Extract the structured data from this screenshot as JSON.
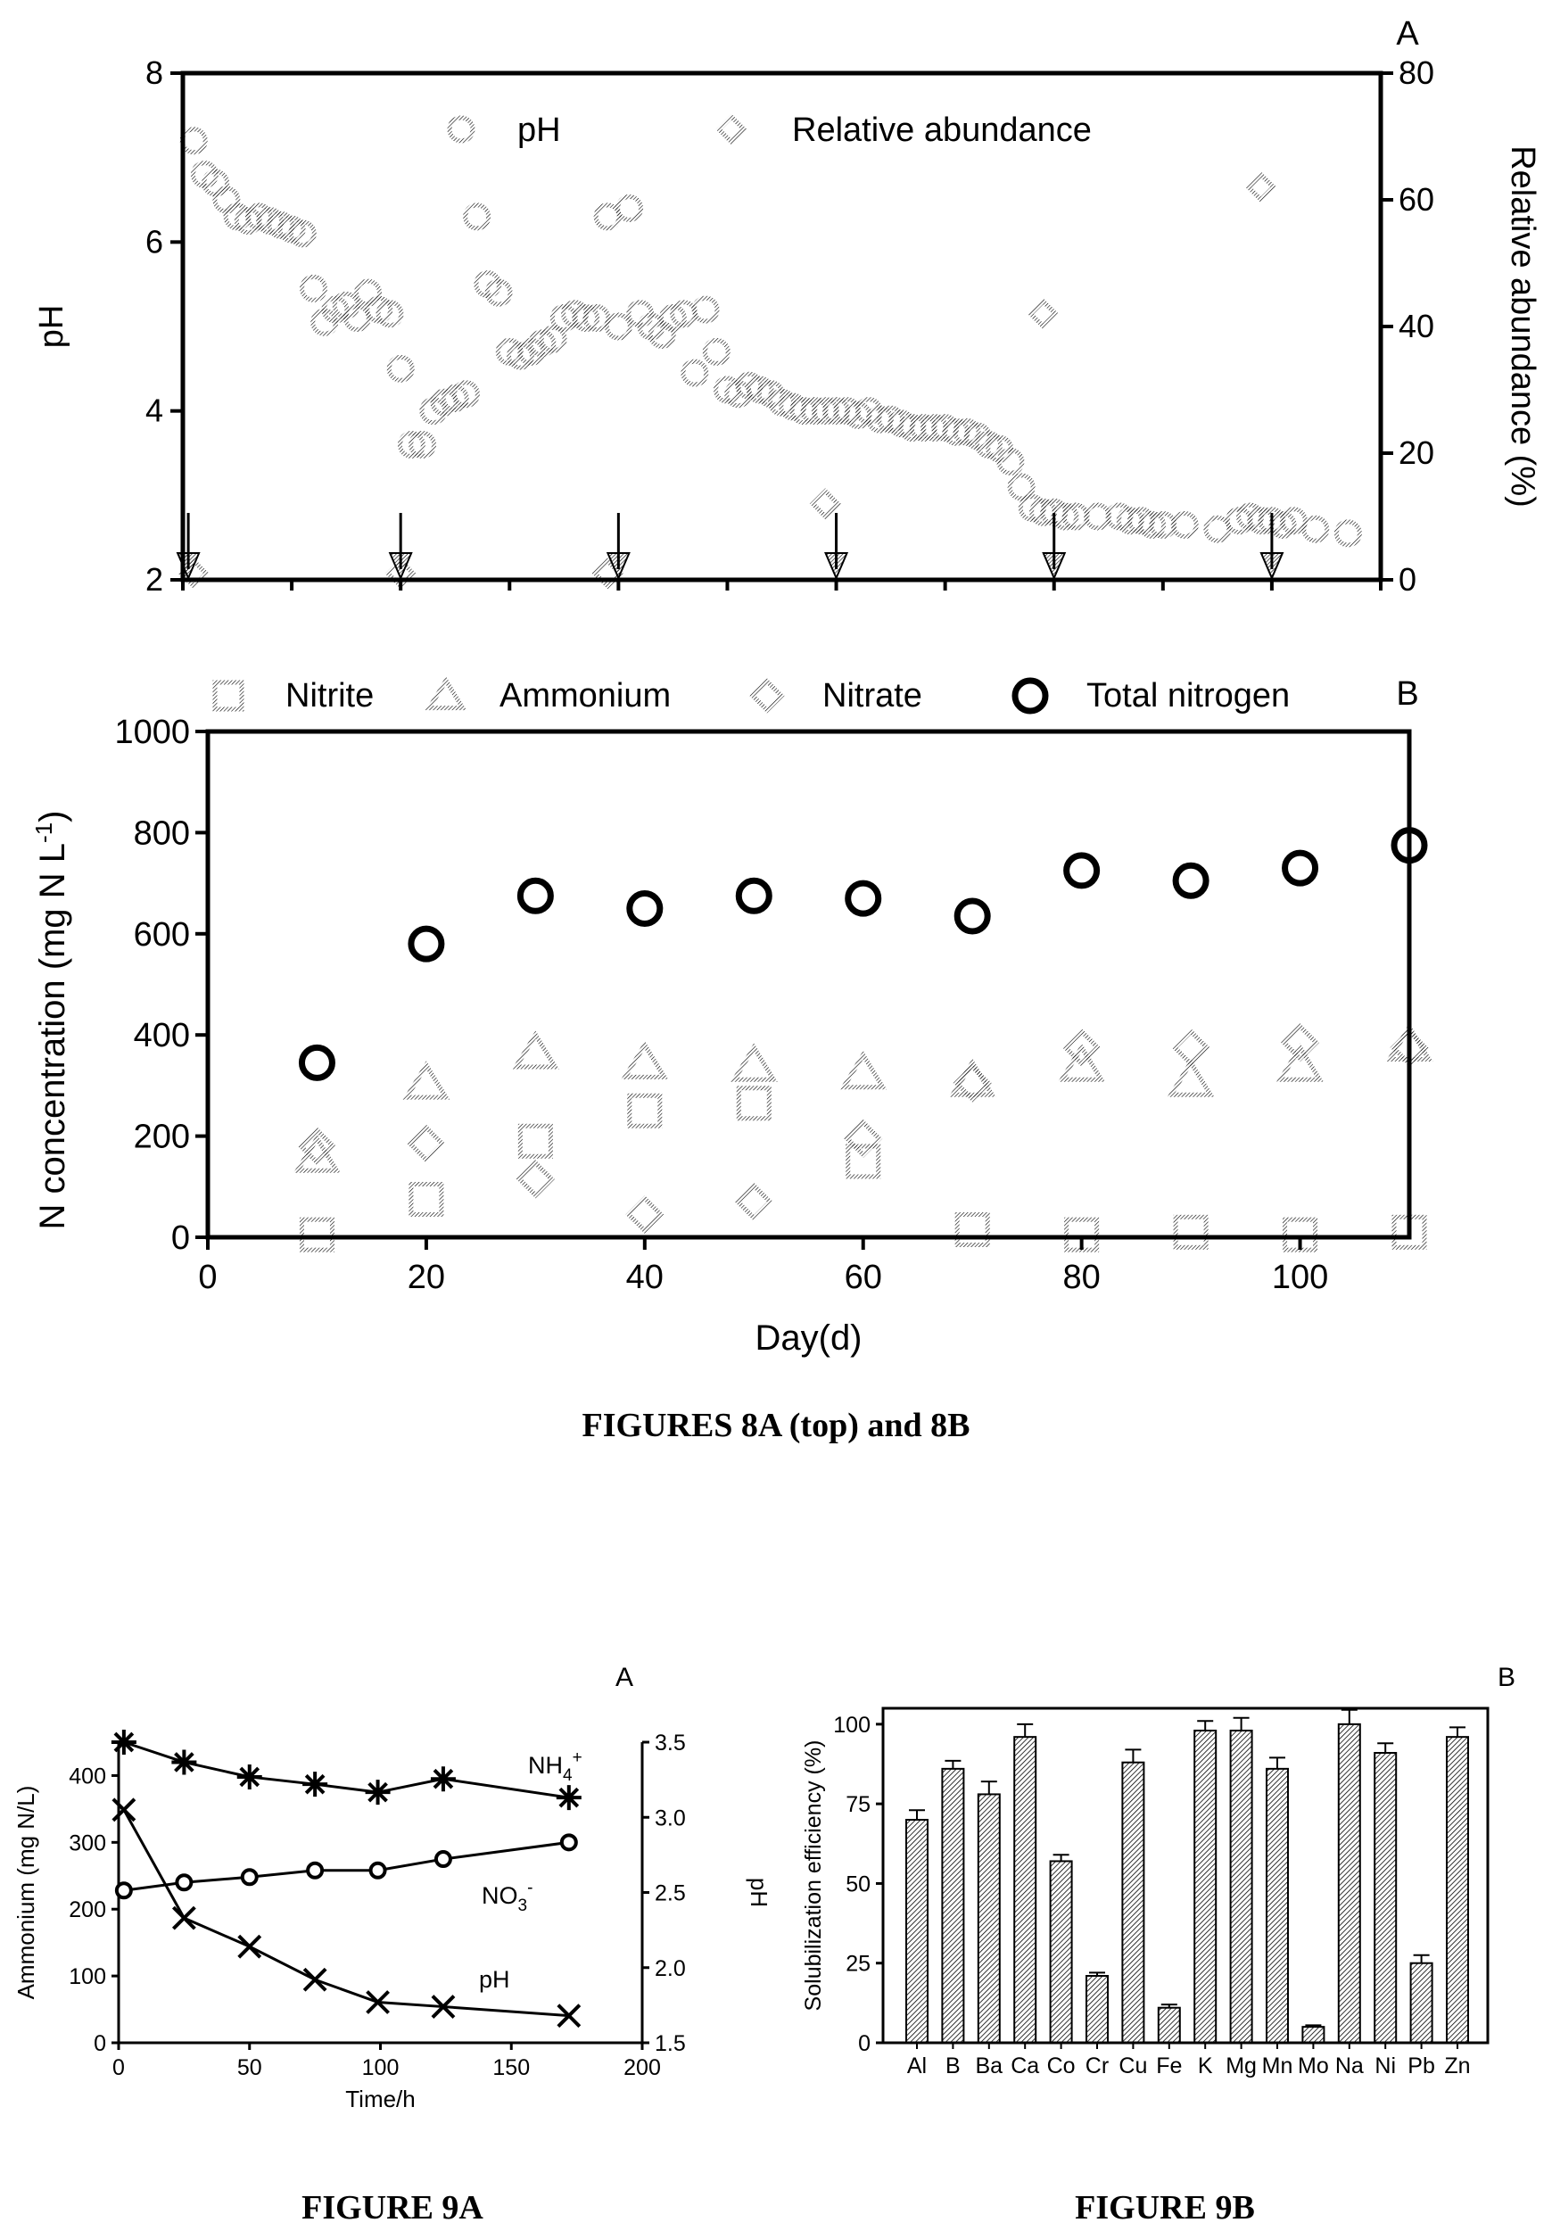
{
  "captions": {
    "fig8": "FIGURES 8A (top) and 8B",
    "fig9a": "FIGURE 9A",
    "fig9b": "FIGURE 9B"
  },
  "chart_data": [
    {
      "id": "8A",
      "type": "scatter",
      "panel_label": "A",
      "xlabel": "",
      "ylabel": "pH",
      "y2label": "Relative abundance (%)",
      "xlim": [
        0,
        110
      ],
      "ylim": [
        2,
        8
      ],
      "y2lim": [
        0,
        80
      ],
      "yticks": [
        2,
        4,
        6,
        8
      ],
      "y2ticks": [
        0,
        20,
        40,
        60,
        80
      ],
      "xticks_unlabeled": [
        0,
        10,
        20,
        30,
        40,
        50,
        60,
        70,
        80,
        90,
        100,
        110
      ],
      "legend": [
        "pH",
        "Relative abundance"
      ],
      "series": [
        {
          "name": "pH",
          "axis": "left",
          "marker": "circle",
          "x": [
            1,
            2,
            3,
            4,
            5,
            6,
            7,
            8,
            9,
            10,
            11,
            12,
            13,
            14,
            15,
            16,
            17,
            18,
            19,
            20,
            21,
            22,
            23,
            24,
            25,
            26,
            27,
            28,
            29,
            30,
            31,
            32,
            33,
            34,
            35,
            36,
            37,
            38,
            39,
            40,
            41,
            42,
            43,
            44,
            45,
            46,
            47,
            48,
            49,
            50,
            51,
            52,
            53,
            54,
            55,
            56,
            57,
            58,
            59,
            60,
            61,
            62,
            63,
            64,
            65,
            66,
            67,
            68,
            69,
            70,
            71,
            72,
            73,
            74,
            75,
            76,
            77,
            78,
            79,
            80,
            81,
            82,
            84,
            86,
            87,
            88,
            89,
            90,
            92,
            95,
            97,
            98,
            99,
            100,
            101,
            102,
            104,
            107
          ],
          "y": [
            7.2,
            6.8,
            6.7,
            6.5,
            6.3,
            6.25,
            6.3,
            6.25,
            6.2,
            6.15,
            6.1,
            5.45,
            5.05,
            5.2,
            5.25,
            5.1,
            5.4,
            5.2,
            5.15,
            4.5,
            3.6,
            3.6,
            4.0,
            4.1,
            4.15,
            4.2,
            6.3,
            5.5,
            5.4,
            4.7,
            4.65,
            4.7,
            4.8,
            4.85,
            5.1,
            5.15,
            5.1,
            5.1,
            6.3,
            5.0,
            6.4,
            5.15,
            5.0,
            4.9,
            5.1,
            5.15,
            4.45,
            5.2,
            4.7,
            4.25,
            4.2,
            4.3,
            4.25,
            4.2,
            4.1,
            4.05,
            4.0,
            4.0,
            4.0,
            4.0,
            4.0,
            3.95,
            4.0,
            3.9,
            3.9,
            3.85,
            3.8,
            3.8,
            3.8,
            3.8,
            3.75,
            3.75,
            3.7,
            3.6,
            3.55,
            3.4,
            3.1,
            2.85,
            2.8,
            2.8,
            2.75,
            2.75,
            2.75,
            2.75,
            2.7,
            2.7,
            2.65,
            2.65,
            2.65,
            2.6,
            2.7,
            2.75,
            2.7,
            2.7,
            2.65,
            2.7,
            2.6,
            2.55
          ]
        },
        {
          "name": "Relative abundance",
          "axis": "right",
          "marker": "diamond",
          "x": [
            1,
            20,
            39,
            59,
            79,
            99
          ],
          "y": [
            1,
            1,
            1,
            12,
            42,
            62
          ]
        }
      ],
      "arrows_at_x": [
        0.5,
        20,
        40,
        60,
        80,
        100
      ]
    },
    {
      "id": "8B",
      "type": "scatter",
      "panel_label": "B",
      "xlabel": "Day(d)",
      "ylabel": "N concentration (mg N L",
      "ylabel_sup": "-1",
      "ylabel_tail": ")",
      "xlim": [
        0,
        110
      ],
      "ylim": [
        0,
        1000
      ],
      "xticks": [
        0,
        20,
        40,
        60,
        80,
        100
      ],
      "yticks": [
        0,
        200,
        400,
        600,
        800,
        1000
      ],
      "series": [
        {
          "name": "Nitrite",
          "marker": "square",
          "x": [
            10,
            20,
            30,
            40,
            50,
            60,
            70,
            80,
            90,
            100,
            110
          ],
          "y": [
            5,
            75,
            190,
            250,
            265,
            150,
            15,
            5,
            10,
            5,
            10
          ]
        },
        {
          "name": "Ammonium",
          "marker": "triangle",
          "x": [
            10,
            20,
            30,
            40,
            50,
            60,
            70,
            80,
            90,
            100,
            110
          ],
          "y": [
            160,
            305,
            365,
            345,
            340,
            325,
            310,
            340,
            310,
            340,
            380
          ]
        },
        {
          "name": "Nitrate",
          "marker": "diamond",
          "x": [
            10,
            20,
            30,
            40,
            50,
            60,
            70,
            80,
            90,
            100,
            110
          ],
          "y": [
            180,
            185,
            115,
            45,
            70,
            195,
            305,
            375,
            375,
            385,
            375
          ]
        },
        {
          "name": "Total nitrogen",
          "marker": "bold-circle",
          "x": [
            10,
            20,
            30,
            40,
            50,
            60,
            70,
            80,
            90,
            100,
            110
          ],
          "y": [
            345,
            580,
            675,
            650,
            675,
            670,
            635,
            725,
            705,
            730,
            775
          ]
        }
      ]
    },
    {
      "id": "9A",
      "type": "line",
      "panel_label": "A",
      "xlabel": "Time/h",
      "ylabel": "Ammonium (mg N/L)",
      "y2label": "pH",
      "xlim": [
        0,
        200
      ],
      "ylim": [
        0,
        450
      ],
      "y2lim": [
        1.5,
        3.5
      ],
      "xticks": [
        0,
        50,
        100,
        150,
        200
      ],
      "yticks": [
        0,
        100,
        200,
        300,
        400
      ],
      "y2ticks": [
        "1.5",
        "2.0",
        "2.5",
        "3.0",
        "3.5"
      ],
      "series": [
        {
          "name": "NH4+",
          "label_main": "NH",
          "label_sub": "4",
          "label_sup": "+",
          "marker": "asterisk",
          "axis": "left",
          "x": [
            2,
            25,
            50,
            75,
            99,
            124,
            172
          ],
          "y": [
            450,
            420,
            398,
            387,
            375,
            395,
            367
          ]
        },
        {
          "name": "NO3-",
          "label_main": "NO",
          "label_sub": "3",
          "label_sup": "-",
          "marker": "open-circle",
          "axis": "left",
          "x": [
            2,
            25,
            50,
            75,
            99,
            124,
            172
          ],
          "y": [
            228,
            240,
            248,
            258,
            258,
            275,
            300
          ]
        },
        {
          "name": "pH",
          "label_main": "pH",
          "marker": "x",
          "axis": "right",
          "x": [
            2,
            25,
            50,
            75,
            99,
            124,
            172
          ],
          "y": [
            3.05,
            2.33,
            2.14,
            1.92,
            1.77,
            1.74,
            1.68
          ]
        }
      ]
    },
    {
      "id": "9B",
      "type": "bar",
      "panel_label": "B",
      "xlabel": "",
      "ylabel": "Solubilization efficiency (%)",
      "ylim": [
        0,
        105
      ],
      "yticks": [
        0,
        25,
        50,
        75,
        100
      ],
      "categories": [
        "Al",
        "B",
        "Ba",
        "Ca",
        "Co",
        "Cr",
        "Cu",
        "Fe",
        "K",
        "Mg",
        "Mn",
        "Mo",
        "Na",
        "Ni",
        "Pb",
        "Zn"
      ],
      "values": [
        70,
        86,
        78,
        96,
        57,
        21,
        88,
        11,
        98,
        98,
        86,
        5,
        100,
        91,
        25,
        96
      ],
      "errors": [
        3,
        2.5,
        4,
        4,
        2,
        1,
        4,
        1,
        3,
        4,
        3.5,
        0.5,
        4.5,
        3,
        2.5,
        3
      ]
    }
  ]
}
